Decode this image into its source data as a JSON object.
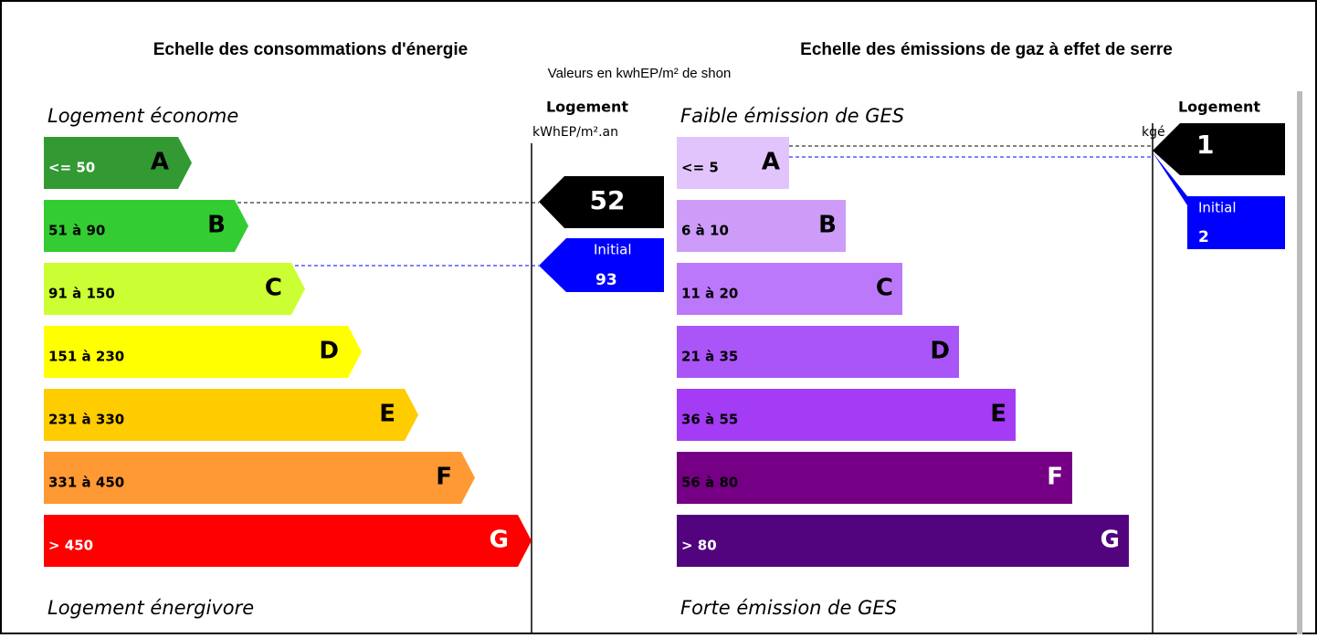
{
  "note": "Valeurs en kwhEP/m² de shon",
  "energy": {
    "title": "Echelle des consommations d'énergie",
    "top_label": "Logement économe",
    "bottom_label": "Logement énergivore",
    "header": "Logement",
    "unit": "kWhEP/m².an",
    "current": 52,
    "initial_label": "Initial",
    "initial": 93,
    "classes": [
      {
        "range": "<= 50",
        "letter": "A",
        "color": "#339933",
        "text_color": "#fff"
      },
      {
        "range": "51 à 90",
        "letter": "B",
        "color": "#33cc33",
        "text_color": "#000"
      },
      {
        "range": "91 à 150",
        "letter": "C",
        "color": "#ccff33",
        "text_color": "#000"
      },
      {
        "range": "151 à 230",
        "letter": "D",
        "color": "#ffff00",
        "text_color": "#000"
      },
      {
        "range": "231 à 330",
        "letter": "E",
        "color": "#ffcc00",
        "text_color": "#000"
      },
      {
        "range": "331 à 450",
        "letter": "F",
        "color": "#ff9933",
        "text_color": "#000"
      },
      {
        "range": "> 450",
        "letter": "G",
        "color": "#ff0000",
        "text_color": "#fff"
      }
    ]
  },
  "ges": {
    "title": "Echelle des émissions de gaz à effet de serre",
    "top_label": "Faible émission de GES",
    "bottom_label": "Forte émission de GES",
    "header": "Logement",
    "unit": "kgé",
    "current": 1,
    "initial_label": "Initial",
    "initial": 2,
    "classes": [
      {
        "range": "<= 5",
        "letter": "A",
        "color": "#e2c4fc",
        "text_color": "#000"
      },
      {
        "range": "6 à 10",
        "letter": "B",
        "color": "#cc9cf8",
        "text_color": "#000"
      },
      {
        "range": "11 à 20",
        "letter": "C",
        "color": "#bc78fa",
        "text_color": "#000"
      },
      {
        "range": "21 à 35",
        "letter": "D",
        "color": "#aa55f7",
        "text_color": "#000"
      },
      {
        "range": "36 à 55",
        "letter": "E",
        "color": "#a33cf4",
        "text_color": "#000"
      },
      {
        "range": "56 à 80",
        "letter": "F",
        "color": "#750085",
        "text_color": "#000"
      },
      {
        "range": "> 80",
        "letter": "G",
        "color": "#52047e",
        "text_color": "#fff"
      }
    ]
  }
}
